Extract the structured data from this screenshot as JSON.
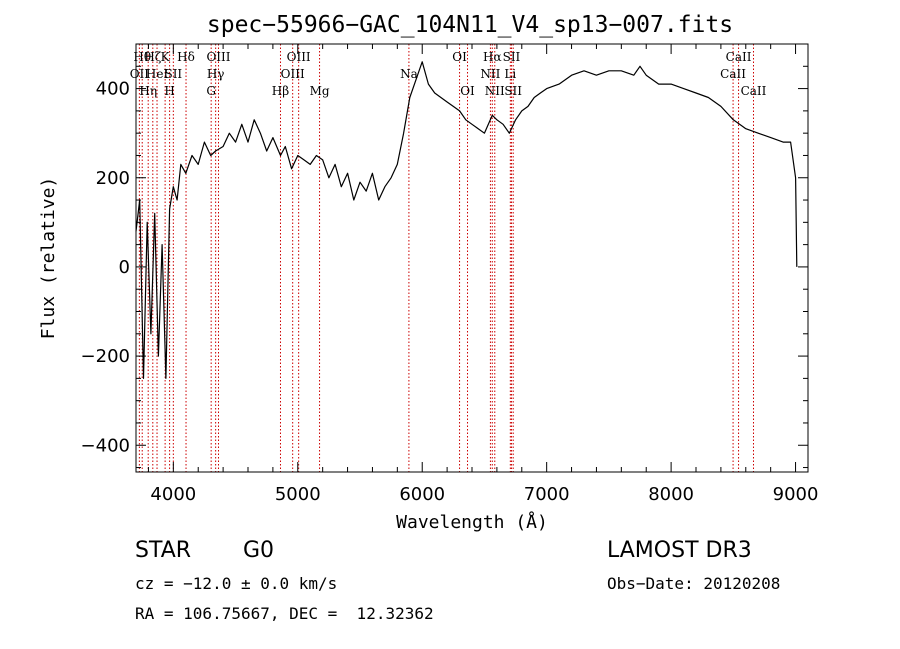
{
  "chart_data": {
    "type": "line",
    "title": "spec−55966−GAC_104N11_V4_sp13−007.fits",
    "xlabel": "Wavelength (Å)",
    "ylabel": "Flux (relative)",
    "xlim": [
      3700,
      9100
    ],
    "ylim": [
      -460,
      500
    ],
    "x_ticks": [
      4000,
      5000,
      6000,
      7000,
      8000,
      9000
    ],
    "y_ticks": [
      -400,
      -200,
      0,
      200,
      400
    ],
    "y_tick_labels": [
      "−400",
      "−200",
      "0",
      "200",
      "400"
    ],
    "grid": false,
    "series": [
      {
        "name": "flux",
        "x": [
          3700,
          3730,
          3760,
          3790,
          3820,
          3850,
          3880,
          3910,
          3940,
          3970,
          4000,
          4030,
          4060,
          4100,
          4150,
          4200,
          4250,
          4300,
          4340,
          4400,
          4450,
          4500,
          4550,
          4600,
          4650,
          4700,
          4750,
          4800,
          4861,
          4900,
          4950,
          5000,
          5050,
          5100,
          5150,
          5200,
          5250,
          5300,
          5350,
          5400,
          5450,
          5500,
          5550,
          5600,
          5650,
          5700,
          5750,
          5800,
          5850,
          5900,
          5950,
          6000,
          6050,
          6100,
          6150,
          6200,
          6250,
          6300,
          6350,
          6400,
          6450,
          6500,
          6563,
          6600,
          6650,
          6700,
          6750,
          6800,
          6850,
          6900,
          6950,
          7000,
          7100,
          7200,
          7300,
          7400,
          7500,
          7600,
          7700,
          7750,
          7800,
          7900,
          8000,
          8100,
          8200,
          8300,
          8400,
          8500,
          8600,
          8700,
          8800,
          8900,
          8960,
          9000,
          9010
        ],
        "y": [
          80,
          150,
          -250,
          100,
          -150,
          120,
          -200,
          50,
          -250,
          130,
          180,
          150,
          230,
          210,
          250,
          230,
          280,
          250,
          260,
          270,
          300,
          280,
          320,
          280,
          330,
          300,
          260,
          290,
          250,
          270,
          220,
          250,
          240,
          230,
          250,
          240,
          200,
          230,
          180,
          210,
          150,
          190,
          170,
          210,
          150,
          180,
          200,
          230,
          300,
          380,
          420,
          460,
          410,
          390,
          380,
          370,
          360,
          350,
          330,
          320,
          310,
          300,
          340,
          330,
          320,
          300,
          330,
          350,
          360,
          380,
          390,
          400,
          410,
          430,
          440,
          430,
          440,
          440,
          430,
          450,
          430,
          410,
          410,
          400,
          390,
          380,
          360,
          330,
          310,
          300,
          290,
          280,
          280,
          200,
          0
        ]
      }
    ],
    "spectral_lines": [
      {
        "wavelength": 3727,
        "label": "OII",
        "row": 2
      },
      {
        "wavelength": 3750,
        "label": "Hθ",
        "row": 1
      },
      {
        "wavelength": 3798,
        "label": "Hη",
        "row": 3
      },
      {
        "wavelength": 3835,
        "label": "Hζ",
        "row": 1
      },
      {
        "wavelength": 3869,
        "label": "HeI",
        "row": 2
      },
      {
        "wavelength": 3934,
        "label": "K",
        "row": 1
      },
      {
        "wavelength": 3970,
        "label": "H",
        "row": 3
      },
      {
        "wavelength": 4000,
        "label": "SII",
        "row": 2
      },
      {
        "wavelength": 4102,
        "label": "Hδ",
        "row": 1
      },
      {
        "wavelength": 4304,
        "label": "G",
        "row": 3
      },
      {
        "wavelength": 4340,
        "label": "Hγ",
        "row": 2
      },
      {
        "wavelength": 4363,
        "label": "OIII",
        "row": 1
      },
      {
        "wavelength": 4861,
        "label": "Hβ",
        "row": 3
      },
      {
        "wavelength": 4959,
        "label": "OIII",
        "row": 2
      },
      {
        "wavelength": 5007,
        "label": "OIII",
        "row": 1
      },
      {
        "wavelength": 5175,
        "label": "Mg",
        "row": 3
      },
      {
        "wavelength": 5893,
        "label": "Na",
        "row": 2
      },
      {
        "wavelength": 6300,
        "label": "OI",
        "row": 1
      },
      {
        "wavelength": 6364,
        "label": "OI",
        "row": 3
      },
      {
        "wavelength": 6548,
        "label": "NII",
        "row": 2
      },
      {
        "wavelength": 6563,
        "label": "Hα",
        "row": 1
      },
      {
        "wavelength": 6583,
        "label": "NII",
        "row": 3
      },
      {
        "wavelength": 6708,
        "label": "Li",
        "row": 2
      },
      {
        "wavelength": 6717,
        "label": "SII",
        "row": 1
      },
      {
        "wavelength": 6731,
        "label": "SII",
        "row": 3
      },
      {
        "wavelength": 8498,
        "label": "CaII",
        "row": 2
      },
      {
        "wavelength": 8542,
        "label": "CaII",
        "row": 1
      },
      {
        "wavelength": 8662,
        "label": "CaII",
        "row": 3
      }
    ]
  },
  "info": {
    "object_type": "STAR",
    "subclass": "G0",
    "survey": "LAMOST DR3",
    "redshift_line": "cz = −12.0 ± 0.0 km/s",
    "obs_date": "Obs−Date: 20120208",
    "coords": "RA = 106.75667, DEC =  12.32362"
  },
  "colors": {
    "spectrum": "#000000",
    "line_marker": "#cc0000"
  }
}
